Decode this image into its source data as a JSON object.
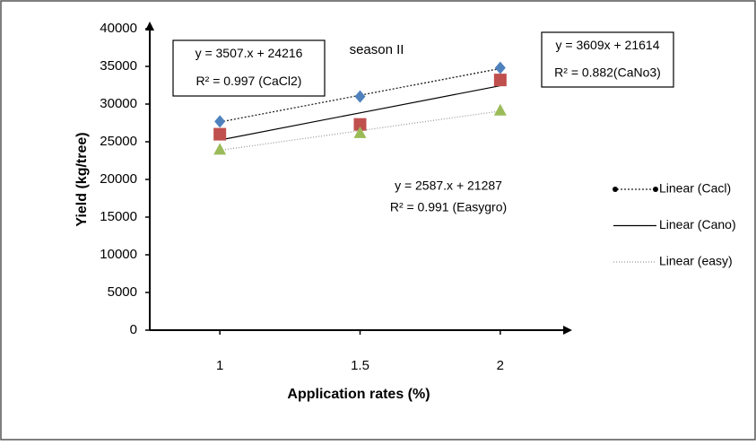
{
  "chart_data": {
    "type": "scatter-trend",
    "title": "season II",
    "x_label": "Application rates (%)",
    "y_label": "Yield (kg/tree)",
    "x": [
      1,
      1.5,
      2
    ],
    "xlim": [
      0.75,
      2.25
    ],
    "xticks": [
      1,
      1.5,
      2
    ],
    "ylim": [
      0,
      40000
    ],
    "yticks": [
      0,
      5000,
      10000,
      15000,
      20000,
      25000,
      30000,
      35000,
      40000
    ],
    "series": [
      {
        "name": "Linear (Cacl)",
        "color": "#4f81bd",
        "marker": "diamond",
        "trend_style": "dotted",
        "values": [
          27700,
          31000,
          34800
        ]
      },
      {
        "name": "Linear (Cano)",
        "color": "#c0504d",
        "marker": "square",
        "trend_style": "solid",
        "values": [
          26000,
          27300,
          33200
        ]
      },
      {
        "name": "Linear (easy)",
        "color": "#9bbb59",
        "marker": "triangle",
        "trend_style": "faint",
        "values": [
          24000,
          26200,
          29200
        ]
      }
    ],
    "annotations": [
      {
        "lines": [
          "y = 3507.x + 24216",
          "R² = 0.997 (CaCl2)"
        ],
        "boxed": true
      },
      {
        "lines": [
          "y = 3609x + 21614",
          "R² = 0.882(CaNo3)"
        ],
        "boxed": true
      },
      {
        "lines": [
          "y = 2587.x + 21287",
          "R² = 0.991 (Easygro)"
        ],
        "boxed": false
      }
    ]
  }
}
